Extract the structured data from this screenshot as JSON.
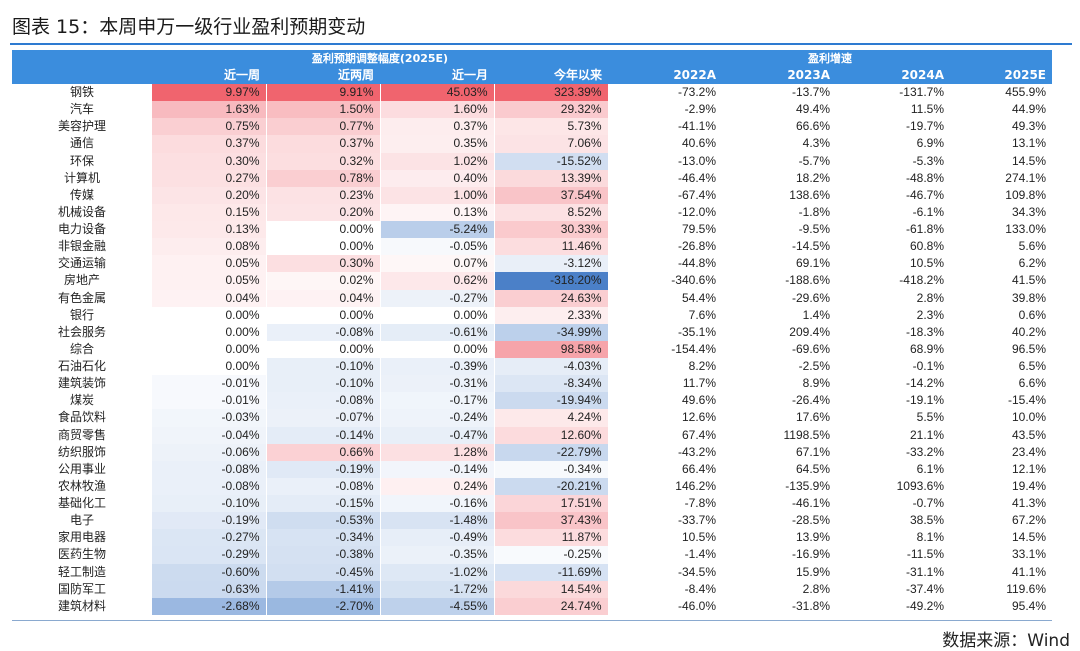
{
  "title": "图表 15：本周申万一级行业盈利预期变动",
  "header": {
    "group1": "盈利预期调整幅度(2025E)",
    "group2": "盈利增速",
    "columns": [
      "近一周",
      "近两周",
      "近一月",
      "今年以来",
      "2022A",
      "2023A",
      "2024A",
      "2025E"
    ]
  },
  "rows": [
    {
      "name": "钢铁",
      "w1": "9.97%",
      "w2": "9.91%",
      "m1": "45.03%",
      "ytd": "323.39%",
      "g22": "-73.2%",
      "g23": "-13.7%",
      "g24": "-131.7%",
      "g25": "455.9%"
    },
    {
      "name": "汽车",
      "w1": "1.63%",
      "w2": "1.50%",
      "m1": "1.60%",
      "ytd": "29.32%",
      "g22": "-2.9%",
      "g23": "49.4%",
      "g24": "11.5%",
      "g25": "44.9%"
    },
    {
      "name": "美容护理",
      "w1": "0.75%",
      "w2": "0.77%",
      "m1": "0.37%",
      "ytd": "5.73%",
      "g22": "-41.1%",
      "g23": "66.6%",
      "g24": "-19.7%",
      "g25": "49.3%"
    },
    {
      "name": "通信",
      "w1": "0.37%",
      "w2": "0.37%",
      "m1": "0.35%",
      "ytd": "7.06%",
      "g22": "40.6%",
      "g23": "4.3%",
      "g24": "6.9%",
      "g25": "13.1%"
    },
    {
      "name": "环保",
      "w1": "0.30%",
      "w2": "0.32%",
      "m1": "1.02%",
      "ytd": "-15.52%",
      "g22": "-13.0%",
      "g23": "-5.7%",
      "g24": "-5.3%",
      "g25": "14.5%"
    },
    {
      "name": "计算机",
      "w1": "0.27%",
      "w2": "0.78%",
      "m1": "0.40%",
      "ytd": "13.39%",
      "g22": "-46.4%",
      "g23": "18.2%",
      "g24": "-48.8%",
      "g25": "274.1%"
    },
    {
      "name": "传媒",
      "w1": "0.20%",
      "w2": "0.23%",
      "m1": "1.00%",
      "ytd": "37.54%",
      "g22": "-67.4%",
      "g23": "138.6%",
      "g24": "-46.7%",
      "g25": "109.8%"
    },
    {
      "name": "机械设备",
      "w1": "0.15%",
      "w2": "0.20%",
      "m1": "0.13%",
      "ytd": "8.52%",
      "g22": "-12.0%",
      "g23": "-1.8%",
      "g24": "-6.1%",
      "g25": "34.3%"
    },
    {
      "name": "电力设备",
      "w1": "0.13%",
      "w2": "0.00%",
      "m1": "-5.24%",
      "ytd": "30.33%",
      "g22": "79.5%",
      "g23": "-9.5%",
      "g24": "-61.8%",
      "g25": "133.0%"
    },
    {
      "name": "非银金融",
      "w1": "0.08%",
      "w2": "0.00%",
      "m1": "-0.05%",
      "ytd": "11.46%",
      "g22": "-26.8%",
      "g23": "-14.5%",
      "g24": "60.8%",
      "g25": "5.6%"
    },
    {
      "name": "交通运输",
      "w1": "0.05%",
      "w2": "0.30%",
      "m1": "0.07%",
      "ytd": "-3.12%",
      "g22": "-44.8%",
      "g23": "69.1%",
      "g24": "10.5%",
      "g25": "6.2%"
    },
    {
      "name": "房地产",
      "w1": "0.05%",
      "w2": "0.02%",
      "m1": "0.62%",
      "ytd": "-318.20%",
      "g22": "-340.6%",
      "g23": "-188.6%",
      "g24": "-418.2%",
      "g25": "41.5%"
    },
    {
      "name": "有色金属",
      "w1": "0.04%",
      "w2": "0.04%",
      "m1": "-0.27%",
      "ytd": "24.63%",
      "g22": "54.4%",
      "g23": "-29.6%",
      "g24": "2.8%",
      "g25": "39.8%"
    },
    {
      "name": "银行",
      "w1": "0.00%",
      "w2": "0.00%",
      "m1": "0.00%",
      "ytd": "2.33%",
      "g22": "7.6%",
      "g23": "1.4%",
      "g24": "2.3%",
      "g25": "0.6%"
    },
    {
      "name": "社会服务",
      "w1": "0.00%",
      "w2": "-0.08%",
      "m1": "-0.61%",
      "ytd": "-34.99%",
      "g22": "-35.1%",
      "g23": "209.4%",
      "g24": "-18.3%",
      "g25": "40.2%"
    },
    {
      "name": "综合",
      "w1": "0.00%",
      "w2": "0.00%",
      "m1": "0.00%",
      "ytd": "98.58%",
      "g22": "-154.4%",
      "g23": "-69.6%",
      "g24": "68.9%",
      "g25": "96.5%"
    },
    {
      "name": "石油石化",
      "w1": "0.00%",
      "w2": "-0.10%",
      "m1": "-0.39%",
      "ytd": "-4.03%",
      "g22": "8.2%",
      "g23": "-2.5%",
      "g24": "-0.1%",
      "g25": "6.5%"
    },
    {
      "name": "建筑装饰",
      "w1": "-0.01%",
      "w2": "-0.10%",
      "m1": "-0.31%",
      "ytd": "-8.34%",
      "g22": "11.7%",
      "g23": "8.9%",
      "g24": "-14.2%",
      "g25": "6.6%"
    },
    {
      "name": "煤炭",
      "w1": "-0.01%",
      "w2": "-0.08%",
      "m1": "-0.17%",
      "ytd": "-19.94%",
      "g22": "49.6%",
      "g23": "-26.4%",
      "g24": "-19.1%",
      "g25": "-15.4%"
    },
    {
      "name": "食品饮料",
      "w1": "-0.03%",
      "w2": "-0.07%",
      "m1": "-0.24%",
      "ytd": "4.24%",
      "g22": "12.6%",
      "g23": "17.6%",
      "g24": "5.5%",
      "g25": "10.0%"
    },
    {
      "name": "商贸零售",
      "w1": "-0.04%",
      "w2": "-0.14%",
      "m1": "-0.47%",
      "ytd": "12.60%",
      "g22": "67.4%",
      "g23": "1198.5%",
      "g24": "21.1%",
      "g25": "43.5%"
    },
    {
      "name": "纺织服饰",
      "w1": "-0.06%",
      "w2": "0.66%",
      "m1": "1.28%",
      "ytd": "-22.79%",
      "g22": "-43.2%",
      "g23": "67.1%",
      "g24": "-33.2%",
      "g25": "23.4%"
    },
    {
      "name": "公用事业",
      "w1": "-0.08%",
      "w2": "-0.19%",
      "m1": "-0.14%",
      "ytd": "-0.34%",
      "g22": "66.4%",
      "g23": "64.5%",
      "g24": "6.1%",
      "g25": "12.1%"
    },
    {
      "name": "农林牧渔",
      "w1": "-0.08%",
      "w2": "-0.08%",
      "m1": "0.24%",
      "ytd": "-20.21%",
      "g22": "146.2%",
      "g23": "-135.9%",
      "g24": "1093.6%",
      "g25": "19.4%"
    },
    {
      "name": "基础化工",
      "w1": "-0.10%",
      "w2": "-0.15%",
      "m1": "-0.16%",
      "ytd": "17.51%",
      "g22": "-7.8%",
      "g23": "-46.1%",
      "g24": "-0.7%",
      "g25": "41.3%"
    },
    {
      "name": "电子",
      "w1": "-0.19%",
      "w2": "-0.53%",
      "m1": "-1.48%",
      "ytd": "37.43%",
      "g22": "-33.7%",
      "g23": "-28.5%",
      "g24": "38.5%",
      "g25": "67.2%"
    },
    {
      "name": "家用电器",
      "w1": "-0.27%",
      "w2": "-0.34%",
      "m1": "-0.49%",
      "ytd": "11.87%",
      "g22": "10.5%",
      "g23": "13.9%",
      "g24": "8.1%",
      "g25": "14.5%"
    },
    {
      "name": "医药生物",
      "w1": "-0.29%",
      "w2": "-0.38%",
      "m1": "-0.35%",
      "ytd": "-0.25%",
      "g22": "-1.4%",
      "g23": "-16.9%",
      "g24": "-11.5%",
      "g25": "33.1%"
    },
    {
      "name": "轻工制造",
      "w1": "-0.60%",
      "w2": "-0.45%",
      "m1": "-1.02%",
      "ytd": "-11.69%",
      "g22": "-34.5%",
      "g23": "15.9%",
      "g24": "-31.1%",
      "g25": "41.1%"
    },
    {
      "name": "国防军工",
      "w1": "-0.63%",
      "w2": "-1.41%",
      "m1": "-1.72%",
      "ytd": "14.54%",
      "g22": "-8.4%",
      "g23": "2.8%",
      "g24": "-37.4%",
      "g25": "119.6%"
    },
    {
      "name": "建筑材料",
      "w1": "-2.68%",
      "w2": "-2.70%",
      "m1": "-4.55%",
      "ytd": "24.74%",
      "g22": "-46.0%",
      "g23": "-31.8%",
      "g24": "-49.2%",
      "g25": "95.4%"
    }
  ],
  "colors": {
    "header_bg": "#3b8ddd",
    "positive_max": "#f0646e",
    "negative_max": "#4a7fc8",
    "title_rule": "#2e7bd1"
  },
  "source": "数据来源：Wind"
}
